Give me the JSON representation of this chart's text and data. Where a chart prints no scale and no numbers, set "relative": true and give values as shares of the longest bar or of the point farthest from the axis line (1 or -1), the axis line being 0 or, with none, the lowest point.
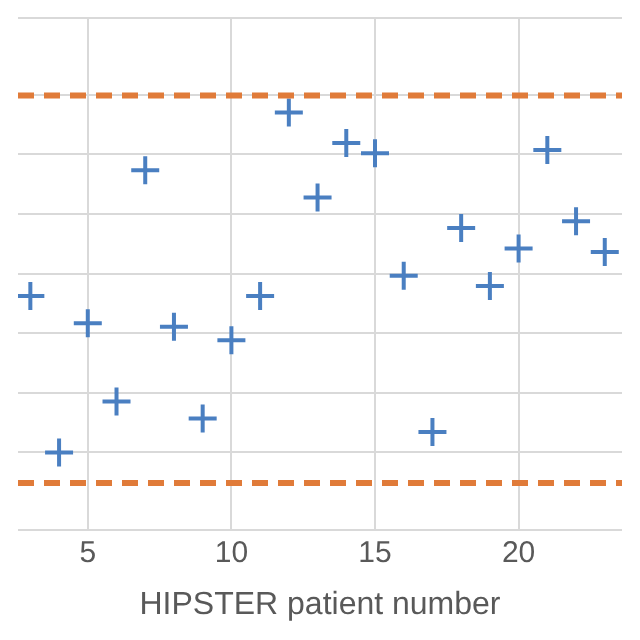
{
  "chart_data": {
    "type": "scatter",
    "relative": true,
    "xlabel": "HIPSTER patient number",
    "xlim": [
      2.57,
      23.6
    ],
    "xticks": [
      5,
      10,
      15,
      20
    ],
    "grid": true,
    "legend": false,
    "marker": "cross",
    "series": [
      {
        "color": "#4a7fc1",
        "x": [
          3,
          4,
          5,
          6,
          7,
          8,
          9,
          10,
          11,
          12,
          13,
          14,
          15,
          16,
          17,
          18,
          19,
          20,
          21,
          22,
          23
        ],
        "values": [
          0.46,
          0,
          0.38,
          0.15,
          0.83,
          0.37,
          0.1,
          0.33,
          0.46,
          1,
          0.75,
          0.91,
          0.88,
          0.52,
          0.06,
          0.66,
          0.49,
          0.6,
          0.89,
          0.68,
          0.59
        ]
      }
    ],
    "ref_lines": [
      {
        "axis": "y",
        "value": 1.05,
        "color": "#e07b39",
        "line_style": "dashed"
      },
      {
        "axis": "y",
        "value": -0.09,
        "color": "#e07b39",
        "line_style": "dashed"
      }
    ]
  }
}
